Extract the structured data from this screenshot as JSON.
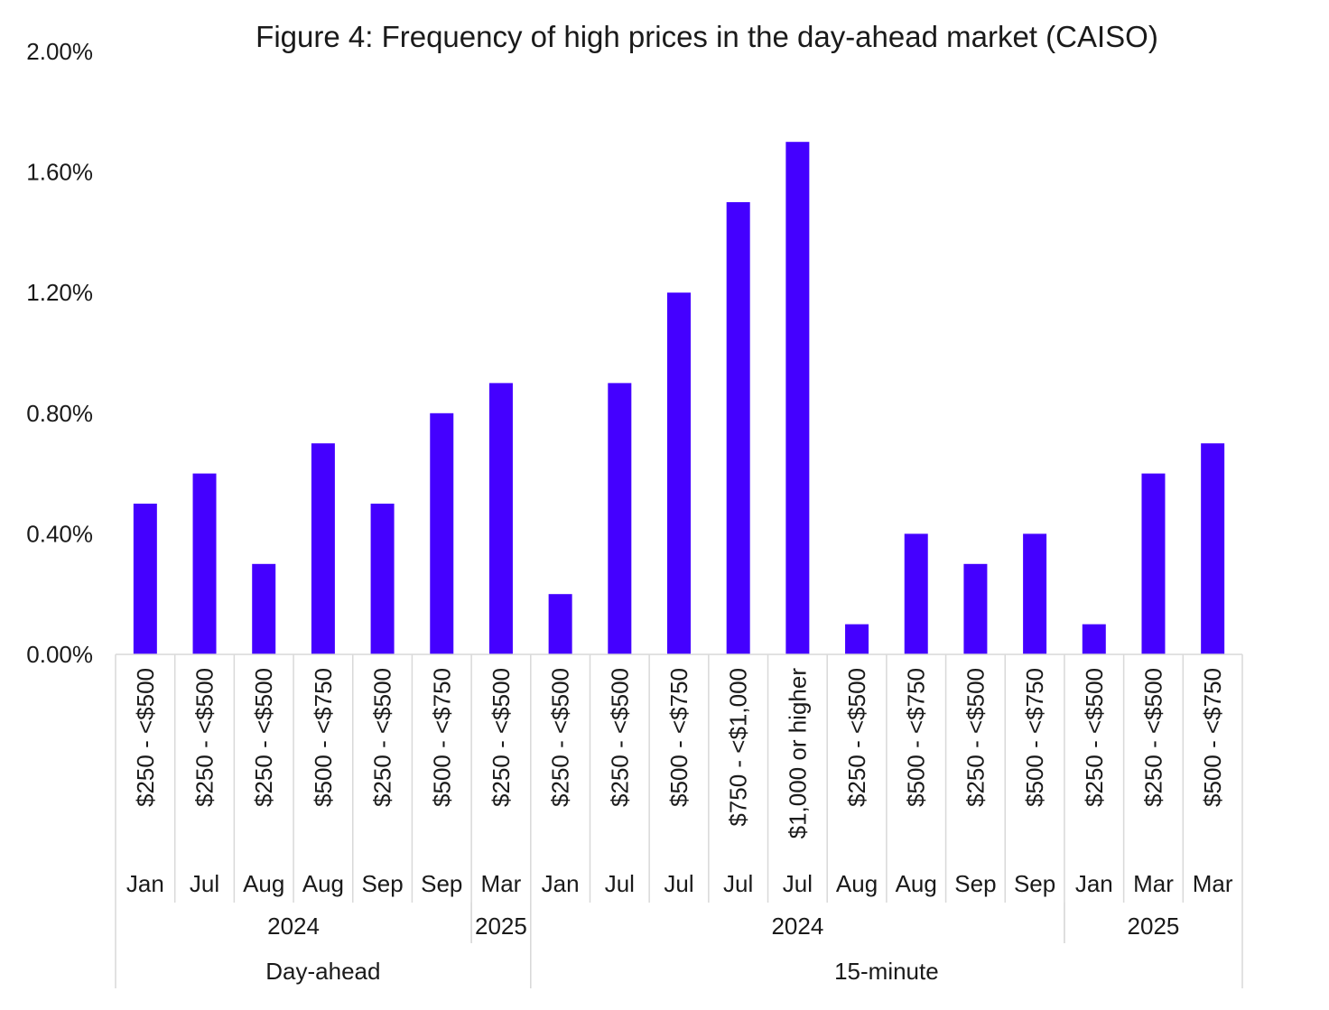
{
  "chart_data": {
    "type": "bar",
    "title": "Figure 4: Frequency of high prices in the day-ahead market (CAISO)",
    "xlabel": "",
    "ylabel": "",
    "ylim": [
      0,
      0.02
    ],
    "yticks": [
      "0.00%",
      "0.40%",
      "0.80%",
      "1.20%",
      "1.60%",
      "2.00%"
    ],
    "ytick_values": [
      0,
      0.004,
      0.008,
      0.012,
      0.016,
      0.02
    ],
    "grid": false,
    "legend": "none",
    "bar_color": "#4400ff",
    "categories": [
      {
        "range": "$250 - <$500",
        "month": "Jan",
        "year": "2024",
        "market": "Day-ahead"
      },
      {
        "range": "$250 - <$500",
        "month": "Jul",
        "year": "2024",
        "market": "Day-ahead"
      },
      {
        "range": "$250 - <$500",
        "month": "Aug",
        "year": "2024",
        "market": "Day-ahead"
      },
      {
        "range": "$500 - <$750",
        "month": "Aug",
        "year": "2024",
        "market": "Day-ahead"
      },
      {
        "range": "$250 - <$500",
        "month": "Sep",
        "year": "2024",
        "market": "Day-ahead"
      },
      {
        "range": "$500 - <$750",
        "month": "Sep",
        "year": "2024",
        "market": "Day-ahead"
      },
      {
        "range": "$250 - <$500",
        "month": "Mar",
        "year": "2025",
        "market": "Day-ahead"
      },
      {
        "range": "$250 - <$500",
        "month": "Jan",
        "year": "2024",
        "market": "15-minute"
      },
      {
        "range": "$250 - <$500",
        "month": "Jul",
        "year": "2024",
        "market": "15-minute"
      },
      {
        "range": "$500 - <$750",
        "month": "Jul",
        "year": "2024",
        "market": "15-minute"
      },
      {
        "range": "$750 - <$1,000",
        "month": "Jul",
        "year": "2024",
        "market": "15-minute"
      },
      {
        "range": "$1,000 or higher",
        "month": "Jul",
        "year": "2024",
        "market": "15-minute"
      },
      {
        "range": "$250 - <$500",
        "month": "Aug",
        "year": "2024",
        "market": "15-minute"
      },
      {
        "range": "$500 - <$750",
        "month": "Aug",
        "year": "2024",
        "market": "15-minute"
      },
      {
        "range": "$250 - <$500",
        "month": "Sep",
        "year": "2024",
        "market": "15-minute"
      },
      {
        "range": "$500 - <$750",
        "month": "Sep",
        "year": "2024",
        "market": "15-minute"
      },
      {
        "range": "$250 - <$500",
        "month": "Jan",
        "year": "2025",
        "market": "15-minute"
      },
      {
        "range": "$250 - <$500",
        "month": "Mar",
        "year": "2025",
        "market": "15-minute"
      },
      {
        "range": "$500 - <$750",
        "month": "Mar",
        "year": "2025",
        "market": "15-minute"
      }
    ],
    "values": [
      0.005,
      0.006,
      0.003,
      0.007,
      0.005,
      0.008,
      0.009,
      0.002,
      0.009,
      0.012,
      0.015,
      0.017,
      0.001,
      0.004,
      0.003,
      0.004,
      0.001,
      0.006,
      0.007
    ]
  }
}
